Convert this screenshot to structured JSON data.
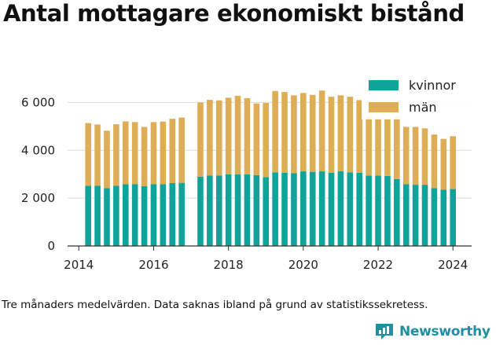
{
  "title": "Antal mottagare ekonomiskt bistånd",
  "caption": "Tre månaders medelvärden. Data saknas ibland på grund av statistikssekretess.",
  "brand": {
    "name": "Newsworthy",
    "icon": "newsworthy-logo-icon"
  },
  "colors": {
    "kvinnor": "#0fa39a",
    "man": "#ddae55",
    "grid": "#dcdcdc",
    "axis": "#333333"
  },
  "chart_data": {
    "type": "bar",
    "stacked": true,
    "ylim": [
      0,
      7000
    ],
    "y_ticks": [
      0,
      2000,
      4000,
      6000
    ],
    "y_tick_labels": [
      "0",
      "2 000",
      "4 000",
      "6 000"
    ],
    "x_ticks": [
      2014,
      2016,
      2018,
      2020,
      2022,
      2024
    ],
    "x_tick_labels": [
      "2014",
      "2016",
      "2018",
      "2020",
      "2022",
      "2024"
    ],
    "xlim": [
      2013.7,
      2024.5
    ],
    "grid": true,
    "legend": "top-right",
    "x": [
      2014.25,
      2014.5,
      2014.75,
      2015.0,
      2015.25,
      2015.5,
      2015.75,
      2016.0,
      2016.25,
      2016.5,
      2016.75,
      2017.25,
      2017.5,
      2017.75,
      2018.0,
      2018.25,
      2018.5,
      2018.75,
      2019.0,
      2019.25,
      2019.5,
      2019.75,
      2020.0,
      2020.25,
      2020.5,
      2020.75,
      2021.0,
      2021.25,
      2021.5,
      2021.75,
      2022.0,
      2022.25,
      2022.5,
      2022.75,
      2023.0,
      2023.25,
      2023.5,
      2023.75,
      2024.0
    ],
    "series": [
      {
        "name": "kvinnor",
        "color": "#0fa39a",
        "values": [
          2520,
          2520,
          2420,
          2520,
          2580,
          2580,
          2500,
          2580,
          2580,
          2630,
          2640,
          2900,
          2950,
          2950,
          3000,
          3000,
          3000,
          2960,
          2880,
          3080,
          3060,
          3040,
          3120,
          3100,
          3120,
          3060,
          3120,
          3080,
          3060,
          2940,
          2940,
          2930,
          2800,
          2580,
          2560,
          2560,
          2420,
          2350,
          2380
        ]
      },
      {
        "name": "män",
        "color": "#ddae55",
        "values": [
          2620,
          2560,
          2400,
          2570,
          2630,
          2600,
          2480,
          2600,
          2620,
          2690,
          2730,
          3100,
          3160,
          3140,
          3200,
          3280,
          3180,
          3000,
          3100,
          3400,
          3380,
          3260,
          3280,
          3220,
          3380,
          3180,
          3180,
          3160,
          3040,
          2500,
          2400,
          2400,
          2600,
          2400,
          2420,
          2360,
          2240,
          2130,
          2210
        ]
      }
    ]
  }
}
